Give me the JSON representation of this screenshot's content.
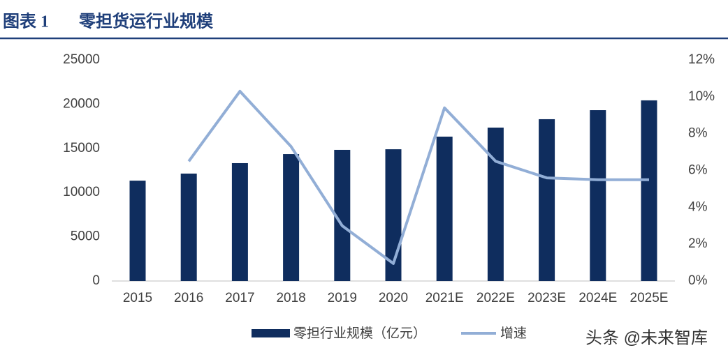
{
  "chart_data": {
    "type": "bar_line",
    "figure_label": "图表 1",
    "title": "零担货运行业规模",
    "categories": [
      "2015",
      "2016",
      "2017",
      "2018",
      "2019",
      "2020",
      "2021E",
      "2022E",
      "2023E",
      "2024E",
      "2025E"
    ],
    "series": [
      {
        "name": "零担行业规模（亿元）",
        "type": "bar",
        "color": "#0f2d5e",
        "axis": "y",
        "values": [
          11350,
          12150,
          13330,
          14350,
          14830,
          14900,
          16330,
          17350,
          18300,
          19320,
          20430
        ]
      },
      {
        "name": "增速",
        "type": "line",
        "color": "#92aed6",
        "axis": "y2",
        "values": [
          null,
          6.5,
          10.3,
          7.3,
          3.0,
          0.95,
          9.4,
          6.5,
          5.6,
          5.5,
          5.5
        ]
      }
    ],
    "ylim": [
      0,
      25000
    ],
    "yticks": [
      0,
      5000,
      10000,
      15000,
      20000,
      25000
    ],
    "y2lim": [
      0,
      12
    ],
    "y2ticks": [
      {
        "value": 0,
        "label": "0%"
      },
      {
        "value": 2,
        "label": "2%"
      },
      {
        "value": 4,
        "label": "4%"
      },
      {
        "value": 6,
        "label": "6%"
      },
      {
        "value": 8,
        "label": "8%"
      },
      {
        "value": 10,
        "label": "10%"
      },
      {
        "value": 12,
        "label": "12%"
      }
    ],
    "legend": "bottom",
    "watermark": "头条 @未来智库"
  }
}
